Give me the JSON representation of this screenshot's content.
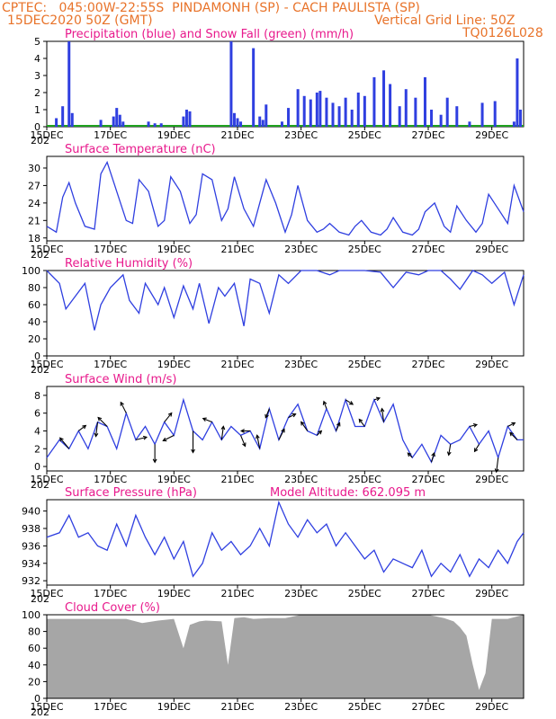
{
  "header": {
    "line1_left": "CPTEC:   045:00W-22:55S  PINDAMONH (SP) - CACH PAULISTA (SP)",
    "line2_left": "15DEC2020 50Z (GMT)",
    "line2_right": "Vertical Grid Line: 50Z",
    "line3_right": "TQ0126L028"
  },
  "colors": {
    "header": "#e8732a",
    "title": "#e8198c",
    "series": "#2f3fe0",
    "snow": "#1fa11f",
    "cloud": "#a6a6a6",
    "grid": "#000000"
  },
  "x_ticks": [
    "15DEC",
    "17DEC",
    "19DEC",
    "21DEC",
    "23DEC",
    "25DEC",
    "27DEC",
    "29DEC"
  ],
  "x_tick_day_offsets": [
    0,
    2,
    4,
    6,
    8,
    10,
    12,
    14
  ],
  "x_range_days": [
    0,
    15
  ],
  "clipped_year_label": "202",
  "chart_data": [
    {
      "type": "bar",
      "title": "Precipitation (blue) and Snow Fall (green) (mm/h)",
      "ylim": [
        0,
        5
      ],
      "yticks": [
        "0",
        "1",
        "2",
        "3",
        "4",
        "5"
      ],
      "ytick_values": [
        0,
        1,
        2,
        3,
        4,
        5
      ],
      "series": [
        {
          "name": "Precipitation",
          "x": [
            0.3,
            0.5,
            0.7,
            0.8,
            1.7,
            2.1,
            2.2,
            2.3,
            2.4,
            3.2,
            3.4,
            3.6,
            4.3,
            4.4,
            4.5,
            5.8,
            5.9,
            6.0,
            6.1,
            6.5,
            6.7,
            6.8,
            6.9,
            7.4,
            7.6,
            7.9,
            8.1,
            8.3,
            8.5,
            8.6,
            8.8,
            9.0,
            9.2,
            9.4,
            9.6,
            9.8,
            10.0,
            10.3,
            10.6,
            10.8,
            11.1,
            11.3,
            11.6,
            11.9,
            12.1,
            12.4,
            12.6,
            12.9,
            13.3,
            13.7,
            14.1,
            14.7,
            14.8,
            14.9
          ],
          "values": [
            0.5,
            1.2,
            5.0,
            0.8,
            0.4,
            0.6,
            1.1,
            0.7,
            0.3,
            0.3,
            0.2,
            0.2,
            0.6,
            1.0,
            0.9,
            5.0,
            0.8,
            0.5,
            0.3,
            4.6,
            0.6,
            0.4,
            1.3,
            0.3,
            1.1,
            2.2,
            1.8,
            1.6,
            2.0,
            2.1,
            1.7,
            1.4,
            1.2,
            1.7,
            1.0,
            2.0,
            1.8,
            2.9,
            3.3,
            2.5,
            1.2,
            2.2,
            1.7,
            2.9,
            1.0,
            0.7,
            1.7,
            1.2,
            0.3,
            1.4,
            1.5,
            0.3,
            4.0,
            1.0
          ]
        },
        {
          "name": "Snow Fall",
          "values": [
            0
          ]
        }
      ]
    },
    {
      "type": "line",
      "title": "Surface Temperature (nC)",
      "ylim": [
        17.5,
        32
      ],
      "yticks": [
        "18",
        "21",
        "24",
        "27",
        "30"
      ],
      "ytick_values": [
        18,
        21,
        24,
        27,
        30
      ],
      "x": [
        0,
        0.3,
        0.5,
        0.7,
        0.9,
        1.2,
        1.5,
        1.7,
        1.9,
        2.2,
        2.5,
        2.7,
        2.9,
        3.2,
        3.5,
        3.7,
        3.9,
        4.2,
        4.5,
        4.7,
        4.9,
        5.2,
        5.5,
        5.7,
        5.9,
        6.2,
        6.5,
        6.7,
        6.9,
        7.2,
        7.5,
        7.7,
        7.9,
        8.2,
        8.5,
        8.7,
        8.9,
        9.2,
        9.5,
        9.7,
        9.9,
        10.2,
        10.5,
        10.7,
        10.9,
        11.2,
        11.5,
        11.7,
        11.9,
        12.2,
        12.5,
        12.7,
        12.9,
        13.2,
        13.5,
        13.7,
        13.9,
        14.2,
        14.5,
        14.7,
        15.0
      ],
      "values": [
        20,
        19,
        25,
        27.5,
        24,
        20,
        19.5,
        29,
        31,
        26,
        21,
        20.5,
        28,
        26,
        20,
        21,
        28.5,
        26,
        20.5,
        22,
        29,
        28,
        21,
        23,
        28.5,
        23,
        20,
        24,
        28,
        24,
        19,
        22,
        27,
        21,
        19,
        19.5,
        20.5,
        19,
        18.5,
        20,
        21,
        19,
        18.5,
        19.5,
        21.5,
        19,
        18.5,
        19.5,
        22.5,
        24,
        20,
        19,
        23.5,
        21,
        19,
        20.5,
        25.5,
        23,
        20.5,
        27,
        22.5
      ]
    },
    {
      "type": "line",
      "title": "Relative Humidity (%)",
      "ylim": [
        0,
        100
      ],
      "yticks": [
        "0",
        "20",
        "40",
        "60",
        "80",
        "100"
      ],
      "ytick_values": [
        0,
        20,
        40,
        60,
        80,
        100
      ],
      "x": [
        0,
        0.4,
        0.6,
        0.9,
        1.2,
        1.5,
        1.7,
        2.0,
        2.4,
        2.6,
        2.9,
        3.1,
        3.5,
        3.7,
        4.0,
        4.3,
        4.6,
        4.8,
        5.1,
        5.4,
        5.6,
        5.9,
        6.2,
        6.4,
        6.7,
        7.0,
        7.3,
        7.6,
        8.0,
        8.5,
        8.9,
        9.2,
        9.6,
        10.0,
        10.5,
        10.9,
        11.3,
        11.7,
        12.0,
        12.4,
        12.7,
        13.0,
        13.4,
        13.7,
        14.0,
        14.4,
        14.7,
        15.0
      ],
      "values": [
        100,
        85,
        55,
        70,
        85,
        30,
        60,
        80,
        95,
        65,
        50,
        85,
        60,
        80,
        45,
        82,
        55,
        85,
        38,
        80,
        70,
        85,
        35,
        90,
        85,
        50,
        95,
        85,
        100,
        100,
        95,
        100,
        100,
        100,
        98,
        80,
        98,
        95,
        100,
        100,
        90,
        78,
        100,
        95,
        85,
        98,
        60,
        95
      ]
    },
    {
      "type": "line",
      "title": "Surface Wind (m/s)",
      "ylim": [
        -0.5,
        9
      ],
      "yticks": [
        "0",
        "2",
        "4",
        "6",
        "8"
      ],
      "ytick_values": [
        0,
        2,
        4,
        6,
        8
      ],
      "x": [
        0,
        0.4,
        0.7,
        1.0,
        1.3,
        1.6,
        1.9,
        2.2,
        2.5,
        2.8,
        3.1,
        3.4,
        3.7,
        4.0,
        4.3,
        4.6,
        4.9,
        5.2,
        5.5,
        5.8,
        6.1,
        6.4,
        6.7,
        7.0,
        7.3,
        7.6,
        7.9,
        8.2,
        8.5,
        8.8,
        9.1,
        9.4,
        9.7,
        10.0,
        10.3,
        10.6,
        10.9,
        11.2,
        11.5,
        11.8,
        12.1,
        12.4,
        12.7,
        13.0,
        13.3,
        13.6,
        13.9,
        14.2,
        14.5,
        14.8,
        15.0
      ],
      "values": [
        1.0,
        3.0,
        2.0,
        4.0,
        2.0,
        5.0,
        4.5,
        2.0,
        6.0,
        3.0,
        4.5,
        2.5,
        5.0,
        3.5,
        7.5,
        4.0,
        3.0,
        5.0,
        3.0,
        4.5,
        3.5,
        4.0,
        2.0,
        6.5,
        3.0,
        5.5,
        7.0,
        4.0,
        3.5,
        6.5,
        4.0,
        7.5,
        4.5,
        4.5,
        7.5,
        5.0,
        7.0,
        3.0,
        1.0,
        2.5,
        0.5,
        3.5,
        2.5,
        3.0,
        4.5,
        2.5,
        4.0,
        1.0,
        4.5,
        3.0,
        3.0
      ],
      "arrows": [
        {
          "x": 0.7,
          "dx": -1.0,
          "dy": 1.2
        },
        {
          "x": 1.0,
          "dx": 0.8,
          "dy": 0.6
        },
        {
          "x": 1.6,
          "dx": -0.2,
          "dy": -1.6
        },
        {
          "x": 1.9,
          "dx": -1.0,
          "dy": 1.0
        },
        {
          "x": 2.5,
          "dx": -0.6,
          "dy": 1.2
        },
        {
          "x": 2.8,
          "dx": 1.2,
          "dy": 0.3
        },
        {
          "x": 3.4,
          "dx": 0.0,
          "dy": -2.0
        },
        {
          "x": 3.7,
          "dx": 0.8,
          "dy": 1.0
        },
        {
          "x": 4.0,
          "dx": -1.2,
          "dy": -0.6
        },
        {
          "x": 4.6,
          "dx": 0.0,
          "dy": -2.4
        },
        {
          "x": 5.2,
          "dx": -1.0,
          "dy": 0.4
        },
        {
          "x": 5.5,
          "dx": 0.2,
          "dy": 1.5
        },
        {
          "x": 6.1,
          "dx": 0.5,
          "dy": -1.2
        },
        {
          "x": 6.4,
          "dx": -1.0,
          "dy": 0.0
        },
        {
          "x": 6.7,
          "dx": -0.3,
          "dy": 1.5
        },
        {
          "x": 7.0,
          "dx": -0.4,
          "dy": -1.0
        },
        {
          "x": 7.3,
          "dx": 0.6,
          "dy": 1.2
        },
        {
          "x": 7.6,
          "dx": 0.8,
          "dy": 0.4
        },
        {
          "x": 8.2,
          "dx": -0.7,
          "dy": 1.0
        },
        {
          "x": 8.5,
          "dx": 0.5,
          "dy": 0.5
        },
        {
          "x": 8.8,
          "dx": -0.3,
          "dy": 0.8
        },
        {
          "x": 9.1,
          "dx": 0.4,
          "dy": 0.9
        },
        {
          "x": 9.4,
          "dx": 0.8,
          "dy": -0.5
        },
        {
          "x": 10.0,
          "dx": -0.6,
          "dy": 0.8
        },
        {
          "x": 10.3,
          "dx": 0.6,
          "dy": 0.2
        },
        {
          "x": 10.6,
          "dx": -0.2,
          "dy": 1.5
        },
        {
          "x": 11.5,
          "dx": -0.5,
          "dy": 0.5
        },
        {
          "x": 12.1,
          "dx": 0.3,
          "dy": 1.0
        },
        {
          "x": 12.7,
          "dx": -0.2,
          "dy": -1.2
        },
        {
          "x": 13.3,
          "dx": 0.8,
          "dy": 0.2
        },
        {
          "x": 13.6,
          "dx": -0.5,
          "dy": -0.8
        },
        {
          "x": 14.2,
          "dx": -0.2,
          "dy": -1.6
        },
        {
          "x": 14.5,
          "dx": 0.8,
          "dy": 0.4
        },
        {
          "x": 14.8,
          "dx": -0.8,
          "dy": 0.8
        }
      ]
    },
    {
      "type": "line",
      "title": "Surface Pressure (hPa)",
      "annotation": "Model Altitude: 662.095  m",
      "ylim": [
        931.5,
        941.3
      ],
      "yticks": [
        "932",
        "934",
        "936",
        "938",
        "940"
      ],
      "ytick_values": [
        932,
        934,
        936,
        938,
        940
      ],
      "x": [
        0,
        0.4,
        0.7,
        1.0,
        1.3,
        1.6,
        1.9,
        2.2,
        2.5,
        2.8,
        3.1,
        3.4,
        3.7,
        4.0,
        4.3,
        4.6,
        4.9,
        5.2,
        5.5,
        5.8,
        6.1,
        6.4,
        6.7,
        7.0,
        7.3,
        7.6,
        7.9,
        8.2,
        8.5,
        8.8,
        9.1,
        9.4,
        9.7,
        10.0,
        10.3,
        10.6,
        10.9,
        11.2,
        11.5,
        11.8,
        12.1,
        12.4,
        12.7,
        13.0,
        13.3,
        13.6,
        13.9,
        14.2,
        14.5,
        14.8,
        15.0
      ],
      "values": [
        937,
        937.5,
        939.5,
        937,
        937.5,
        936,
        935.5,
        938.5,
        936,
        939.5,
        937,
        935,
        937,
        934.5,
        936.5,
        932.5,
        934,
        937.5,
        935.5,
        936.5,
        935,
        936,
        938,
        936,
        941,
        938.5,
        937,
        939,
        937.5,
        938.5,
        936,
        937.5,
        936,
        934.5,
        935.5,
        933,
        934.5,
        934,
        933.5,
        935.5,
        932.5,
        934,
        933,
        935,
        932.5,
        934.5,
        933.5,
        935.5,
        934,
        936.5,
        937.5
      ]
    },
    {
      "type": "area",
      "title": "Cloud Cover (%)",
      "ylim": [
        0,
        100
      ],
      "yticks": [
        "0",
        "20",
        "40",
        "60",
        "80",
        "100"
      ],
      "ytick_values": [
        0,
        20,
        40,
        60,
        80,
        100
      ],
      "x": [
        0,
        0.5,
        1.0,
        1.5,
        2.0,
        2.5,
        3.0,
        3.5,
        4.0,
        4.3,
        4.5,
        4.8,
        5.0,
        5.5,
        5.7,
        5.9,
        6.2,
        6.5,
        7.0,
        7.5,
        8.0,
        8.5,
        9.0,
        9.5,
        10.0,
        10.5,
        11.0,
        11.5,
        12.0,
        12.5,
        12.8,
        13.0,
        13.2,
        13.4,
        13.6,
        13.8,
        14.0,
        14.5,
        15.0
      ],
      "values": [
        95,
        95,
        95,
        95,
        95,
        95,
        90,
        93,
        95,
        60,
        88,
        92,
        93,
        92,
        40,
        96,
        97,
        95,
        96,
        96,
        100,
        100,
        100,
        100,
        100,
        100,
        100,
        100,
        100,
        96,
        92,
        85,
        75,
        40,
        10,
        30,
        95,
        95,
        100
      ]
    }
  ]
}
